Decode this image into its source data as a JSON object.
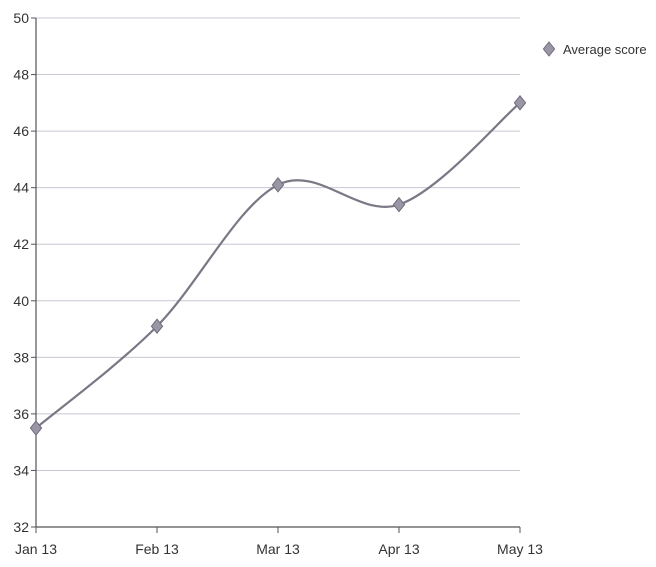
{
  "chart_data": {
    "type": "line",
    "title": "",
    "xlabel": "",
    "ylabel": "",
    "categories": [
      "Jan 13",
      "Feb 13",
      "Mar 13",
      "Apr 13",
      "May 13"
    ],
    "series": [
      {
        "name": "Average score",
        "values": [
          35.5,
          39.1,
          44.1,
          43.4,
          47.0
        ]
      }
    ],
    "ylim": [
      32,
      50
    ],
    "yticks": [
      "32",
      "34",
      "36",
      "38",
      "40",
      "42",
      "44",
      "46",
      "48",
      "50"
    ],
    "grid": true,
    "legend_position": "top-right",
    "colors": {
      "line": "#7b7785",
      "marker": "#9a96a6",
      "grid": "#c8c8d4",
      "axis": "#555555"
    },
    "marker": "diamond-icon",
    "curve": "smooth"
  }
}
